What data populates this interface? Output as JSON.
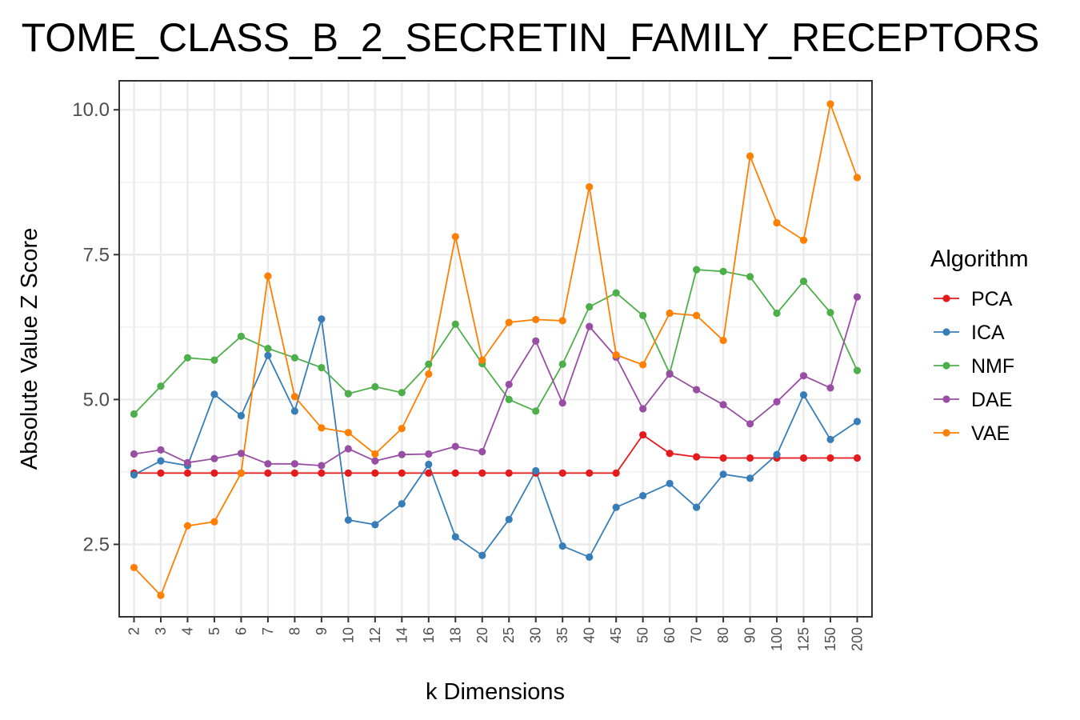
{
  "chart_data": {
    "type": "line",
    "title": "TOME_CLASS_B_2_SECRETIN_FAMILY_RECEPTORS",
    "xlabel": "k Dimensions",
    "ylabel": "Absolute Value Z Score",
    "categories": [
      "2",
      "3",
      "4",
      "5",
      "6",
      "7",
      "8",
      "9",
      "10",
      "12",
      "14",
      "16",
      "18",
      "20",
      "25",
      "30",
      "35",
      "40",
      "45",
      "50",
      "60",
      "70",
      "80",
      "90",
      "100",
      "125",
      "150",
      "200"
    ],
    "ylim": [
      1.25,
      10.5
    ],
    "yticks": [
      2.5,
      5.0,
      7.5,
      10.0
    ],
    "ytick_labels": [
      "2.5",
      "5.0",
      "7.5",
      "10.0"
    ],
    "grid": true,
    "legend": {
      "title": "Algorithm",
      "position": "right"
    },
    "series": [
      {
        "name": "PCA",
        "color": "#e41a1c",
        "values": [
          3.73,
          3.73,
          3.73,
          3.73,
          3.73,
          3.73,
          3.73,
          3.73,
          3.73,
          3.73,
          3.73,
          3.73,
          3.73,
          3.73,
          3.73,
          3.73,
          3.73,
          3.73,
          3.73,
          4.39,
          4.07,
          4.01,
          3.99,
          3.99,
          3.99,
          3.99,
          3.99,
          3.99
        ]
      },
      {
        "name": "ICA",
        "color": "#377eb8",
        "values": [
          3.7,
          3.94,
          3.86,
          5.09,
          4.72,
          5.76,
          4.8,
          6.39,
          2.92,
          2.84,
          3.2,
          3.88,
          2.63,
          2.31,
          2.93,
          3.77,
          2.47,
          2.28,
          3.14,
          3.34,
          3.55,
          3.14,
          3.71,
          3.64,
          4.05,
          5.08,
          4.31,
          4.62
        ]
      },
      {
        "name": "NMF",
        "color": "#4daf4a",
        "values": [
          4.75,
          5.23,
          5.72,
          5.68,
          6.09,
          5.88,
          5.72,
          5.55,
          5.1,
          5.22,
          5.12,
          5.61,
          6.3,
          5.62,
          5.0,
          4.8,
          5.61,
          6.6,
          6.84,
          6.45,
          5.45,
          7.24,
          7.21,
          7.12,
          6.49,
          7.04,
          6.5,
          5.5
        ]
      },
      {
        "name": "DAE",
        "color": "#984ea3",
        "values": [
          4.06,
          4.13,
          3.91,
          3.98,
          4.07,
          3.89,
          3.89,
          3.86,
          4.15,
          3.94,
          4.05,
          4.06,
          4.19,
          4.1,
          5.26,
          6.01,
          4.94,
          6.26,
          5.73,
          4.84,
          5.44,
          5.17,
          4.91,
          4.58,
          4.96,
          5.41,
          5.2,
          6.77
        ]
      },
      {
        "name": "VAE",
        "color": "#ff7f00",
        "values": [
          2.1,
          1.62,
          2.82,
          2.89,
          3.73,
          7.13,
          5.05,
          4.51,
          4.43,
          4.06,
          4.5,
          5.44,
          7.81,
          5.68,
          6.33,
          6.38,
          6.36,
          8.67,
          5.77,
          5.6,
          6.49,
          6.45,
          6.02,
          9.2,
          8.05,
          7.75,
          10.1,
          8.83
        ]
      }
    ]
  }
}
